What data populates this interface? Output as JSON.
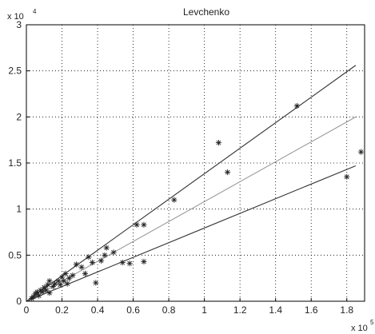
{
  "chart_data": {
    "type": "scatter",
    "title": "Levchenko",
    "xlabel": "",
    "ylabel": "",
    "x_multiplier": "x 10",
    "x_multiplier_exp": "5",
    "y_multiplier": "x 10",
    "y_multiplier_exp": "4",
    "xlim": [
      0,
      1.9
    ],
    "ylim": [
      0,
      3
    ],
    "x_ticks": [
      "0",
      "0.2",
      "0.4",
      "0.6",
      "0.8",
      "1",
      "1.2",
      "1.4",
      "1.6",
      "1.8"
    ],
    "x_tick_values": [
      0,
      0.2,
      0.4,
      0.6,
      0.8,
      1.0,
      1.2,
      1.4,
      1.6,
      1.8
    ],
    "y_ticks": [
      "0",
      "0.5",
      "1",
      "1.5",
      "2",
      "2.5",
      "3"
    ],
    "y_tick_values": [
      0,
      0.5,
      1.0,
      1.5,
      2.0,
      2.5,
      3.0
    ],
    "grid": true,
    "lines": [
      {
        "x": [
          0,
          1.85
        ],
        "y": [
          0,
          2.56
        ],
        "color": "#333333"
      },
      {
        "x": [
          0,
          1.85
        ],
        "y": [
          0,
          2.0
        ],
        "color": "#9a9a9a"
      },
      {
        "x": [
          0,
          1.85
        ],
        "y": [
          0,
          1.47
        ],
        "color": "#333333"
      }
    ],
    "points": [
      [
        0.03,
        0.03
      ],
      [
        0.04,
        0.05
      ],
      [
        0.05,
        0.08
      ],
      [
        0.06,
        0.1
      ],
      [
        0.07,
        0.06
      ],
      [
        0.08,
        0.12
      ],
      [
        0.09,
        0.1
      ],
      [
        0.1,
        0.15
      ],
      [
        0.11,
        0.12
      ],
      [
        0.12,
        0.18
      ],
      [
        0.13,
        0.09
      ],
      [
        0.13,
        0.22
      ],
      [
        0.15,
        0.16
      ],
      [
        0.16,
        0.19
      ],
      [
        0.18,
        0.22
      ],
      [
        0.19,
        0.18
      ],
      [
        0.2,
        0.26
      ],
      [
        0.21,
        0.22
      ],
      [
        0.22,
        0.3
      ],
      [
        0.23,
        0.19
      ],
      [
        0.24,
        0.25
      ],
      [
        0.26,
        0.28
      ],
      [
        0.28,
        0.4
      ],
      [
        0.31,
        0.37
      ],
      [
        0.33,
        0.3
      ],
      [
        0.35,
        0.48
      ],
      [
        0.37,
        0.42
      ],
      [
        0.39,
        0.2
      ],
      [
        0.42,
        0.44
      ],
      [
        0.44,
        0.5
      ],
      [
        0.45,
        0.58
      ],
      [
        0.49,
        0.53
      ],
      [
        0.54,
        0.42
      ],
      [
        0.58,
        0.41
      ],
      [
        0.62,
        0.83
      ],
      [
        0.66,
        0.83
      ],
      [
        0.66,
        0.43
      ],
      [
        0.83,
        1.1
      ],
      [
        1.08,
        1.72
      ],
      [
        1.13,
        1.4
      ],
      [
        1.52,
        2.12
      ],
      [
        1.8,
        1.35
      ],
      [
        1.88,
        1.62
      ]
    ]
  }
}
